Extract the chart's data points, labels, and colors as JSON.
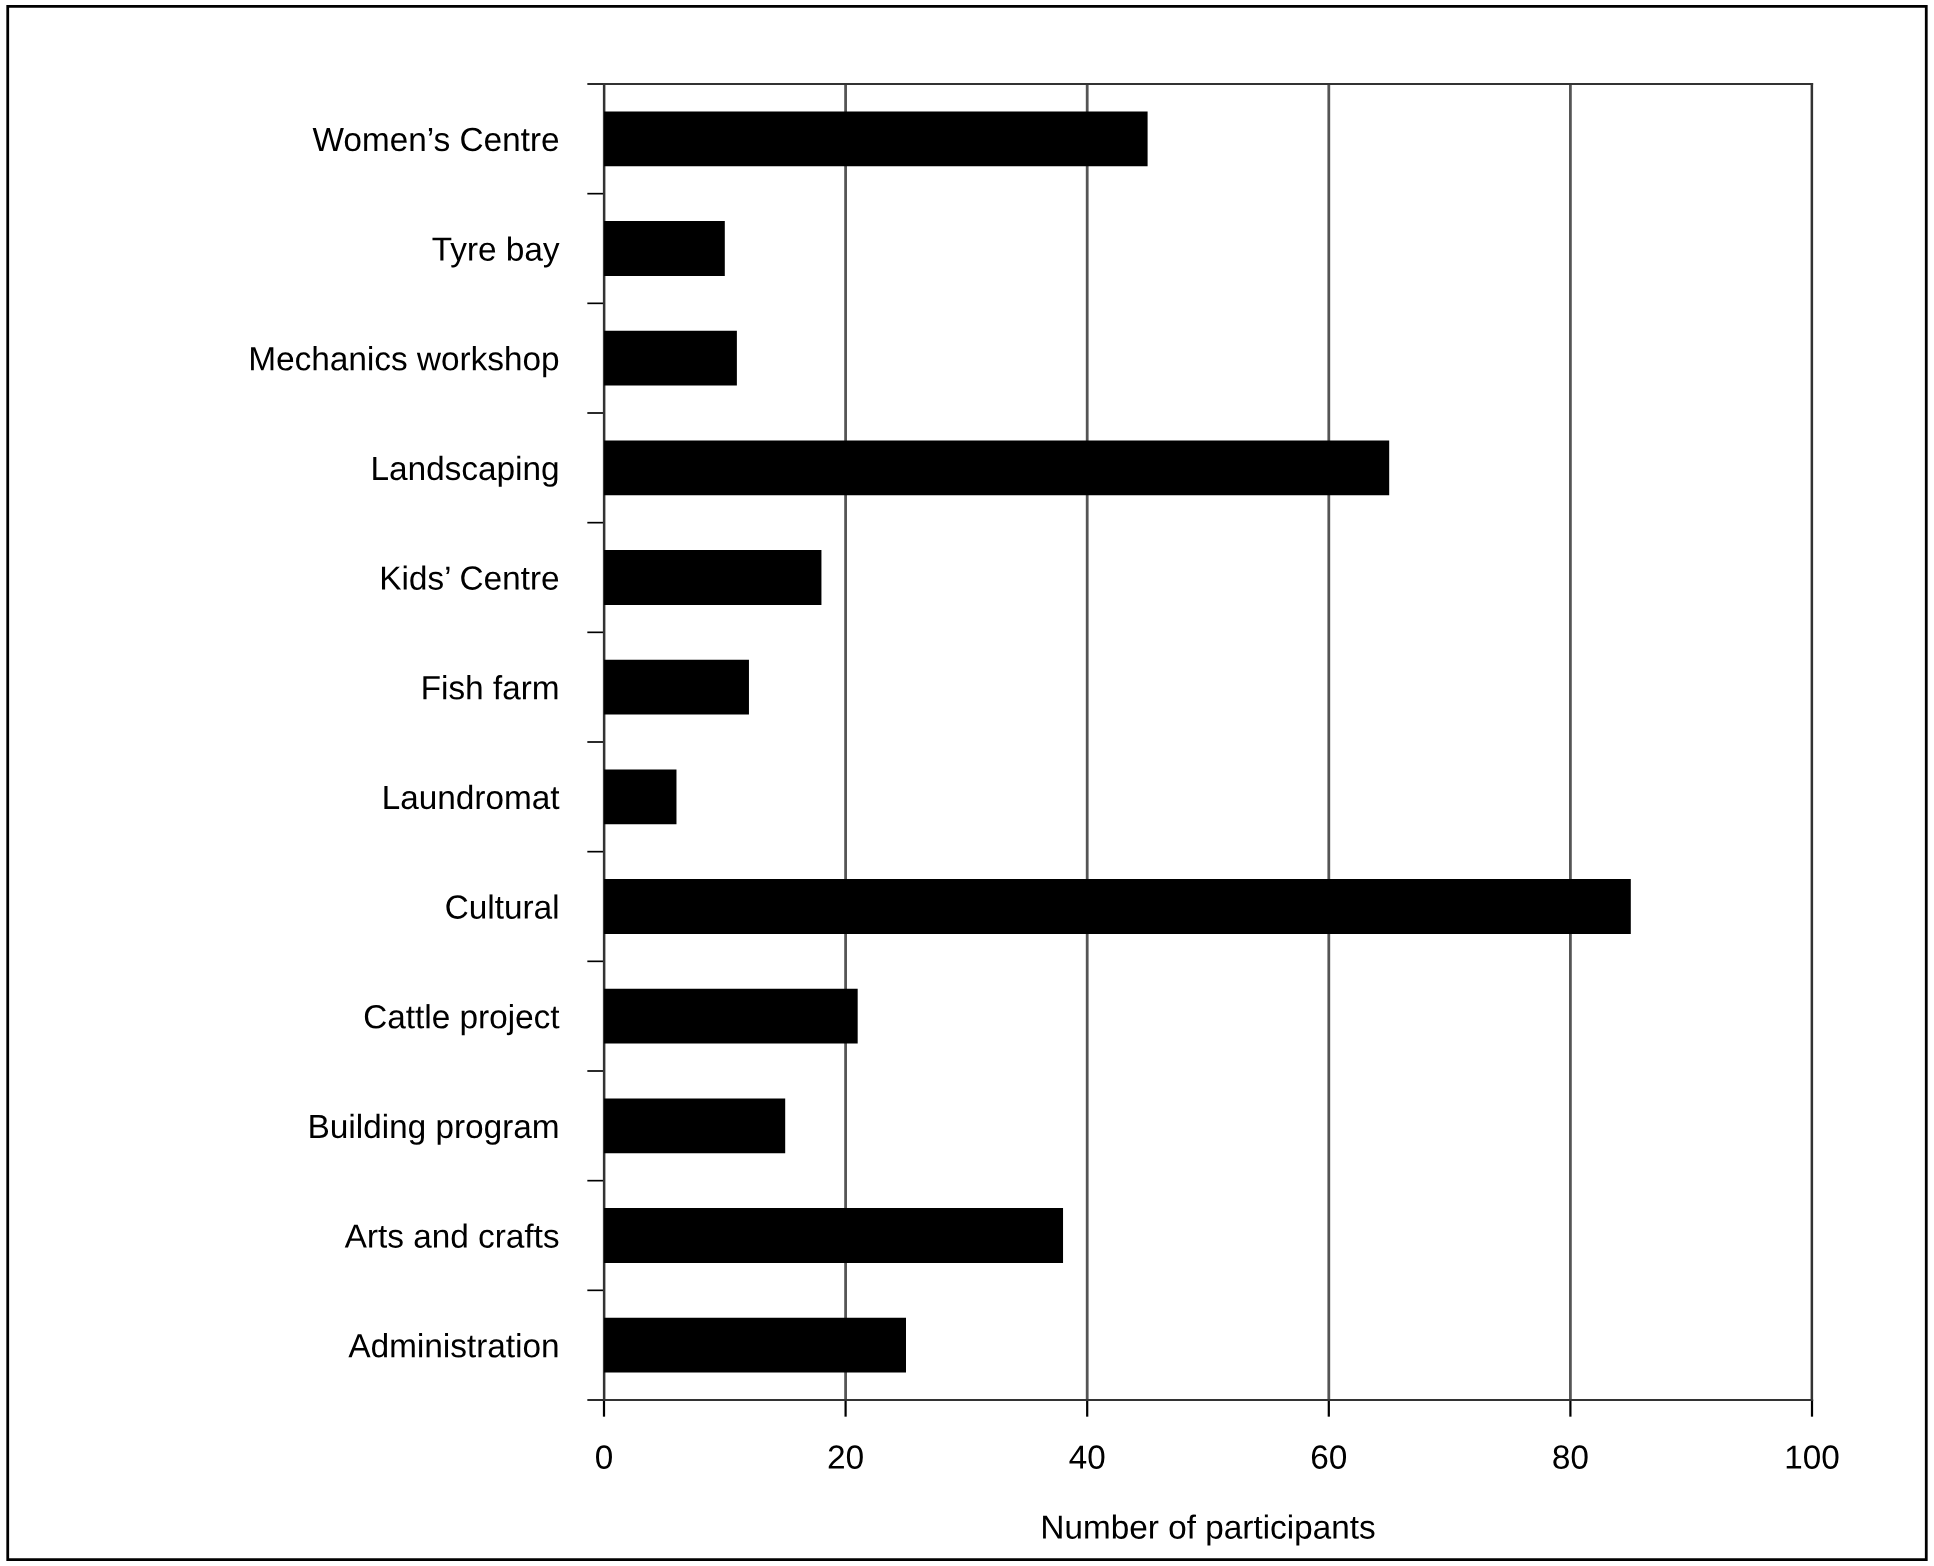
{
  "chart_data": {
    "type": "bar",
    "orientation": "horizontal",
    "xlabel": "Number of participants",
    "categories": [
      "Women’s Centre",
      "Tyre bay",
      "Mechanics workshop",
      "Landscaping",
      "Kids’ Centre",
      "Fish farm",
      "Laundromat",
      "Cultural",
      "Cattle project",
      "Building program",
      "Arts and crafts",
      "Administration"
    ],
    "values": [
      45,
      10,
      11,
      65,
      18,
      12,
      6,
      85,
      21,
      15,
      38,
      25
    ],
    "color": "#000000",
    "xlim": [
      0,
      100
    ],
    "xticks": [
      0,
      20,
      40,
      60,
      80,
      100
    ],
    "grid": "x"
  }
}
